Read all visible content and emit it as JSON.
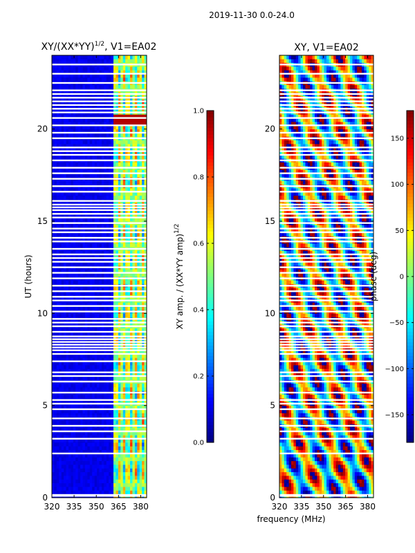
{
  "suptitle": "2019-11-30 0.0-24.0",
  "colors": {
    "jet": [
      "#00007f",
      "#0000ff",
      "#007fff",
      "#00ffff",
      "#7fff7f",
      "#ffff00",
      "#ff7f00",
      "#ff0000",
      "#7f0000"
    ],
    "gap": "#ffffff",
    "frame": "#000000"
  },
  "chart_data": [
    {
      "type": "heatmap",
      "title_main": "XY/(XX*YY)",
      "title_sup": "1/2",
      "title_rest": ", V1=EA02",
      "quantity": "normalized XY amplitude",
      "ylabel": "UT (hours)",
      "xlabel": "",
      "xlim": [
        320,
        384
      ],
      "ylim": [
        0,
        24
      ],
      "xticks": [
        "320",
        "335",
        "350",
        "365",
        "380"
      ],
      "xtick_values": [
        320,
        335,
        350,
        365,
        380
      ],
      "yticks": [
        "0",
        "5",
        "10",
        "15",
        "20"
      ],
      "ytick_values": [
        0,
        5,
        10,
        15,
        20
      ],
      "colorbar": {
        "label_main": "XY amp. / (XX*YY amp)",
        "label_sup": "1/2",
        "range": [
          0.0,
          1.0
        ],
        "ticks": [
          "0.0",
          "0.2",
          "0.4",
          "0.6",
          "0.8",
          "1.0"
        ],
        "tick_values": [
          0.0,
          0.2,
          0.4,
          0.6,
          0.8,
          1.0
        ]
      },
      "features": {
        "background_level": 0.08,
        "bright_band_MHz": [
          362,
          384
        ],
        "bright_band_level": 0.45,
        "flare_hours": [
          20.3,
          20.8
        ],
        "flare_level": 0.95
      }
    },
    {
      "type": "heatmap",
      "title": "XY, V1=EA02",
      "quantity": "XY phase (deg)",
      "ylabel": "",
      "xlabel": "frequency (MHz)",
      "xlim": [
        320,
        384
      ],
      "ylim": [
        0,
        24
      ],
      "xticks": [
        "320",
        "335",
        "350",
        "365",
        "380"
      ],
      "xtick_values": [
        320,
        335,
        350,
        365,
        380
      ],
      "yticks": [
        "0",
        "5",
        "10",
        "15",
        "20"
      ],
      "ytick_values": [
        0,
        5,
        10,
        15,
        20
      ],
      "colorbar": {
        "label": "phase (deg)",
        "range": [
          -180,
          180
        ],
        "ticks": [
          "150",
          "100",
          "50",
          "0",
          "−50",
          "−100",
          "−150"
        ],
        "tick_values": [
          150,
          100,
          50,
          0,
          -50,
          -100,
          -150
        ]
      }
    }
  ],
  "flagged_hours": [
    0.1,
    0.15,
    2.4,
    3.2,
    3.6,
    3.9,
    4.3,
    4.8,
    5.1,
    5.3,
    5.7,
    6.3,
    6.6,
    6.8,
    7.4,
    7.8,
    8.0,
    8.15,
    8.3,
    8.45,
    8.6,
    8.75,
    9.0,
    9.3,
    9.5,
    9.7,
    10.1,
    10.4,
    10.7,
    10.9,
    11.2,
    11.5,
    11.9,
    12.2,
    12.5,
    12.8,
    13.0,
    13.2,
    13.5,
    13.9,
    14.1,
    14.4,
    14.6,
    14.9,
    15.2,
    15.4,
    15.6,
    15.75,
    15.9,
    16.1,
    16.6,
    16.9,
    17.3,
    17.6,
    17.9,
    18.3,
    18.6,
    18.8,
    19.0,
    19.5,
    19.8,
    20.2,
    20.6,
    20.9,
    21.1,
    21.3,
    21.5,
    21.7,
    21.9,
    22.1,
    22.5,
    23.0,
    23.5
  ]
}
